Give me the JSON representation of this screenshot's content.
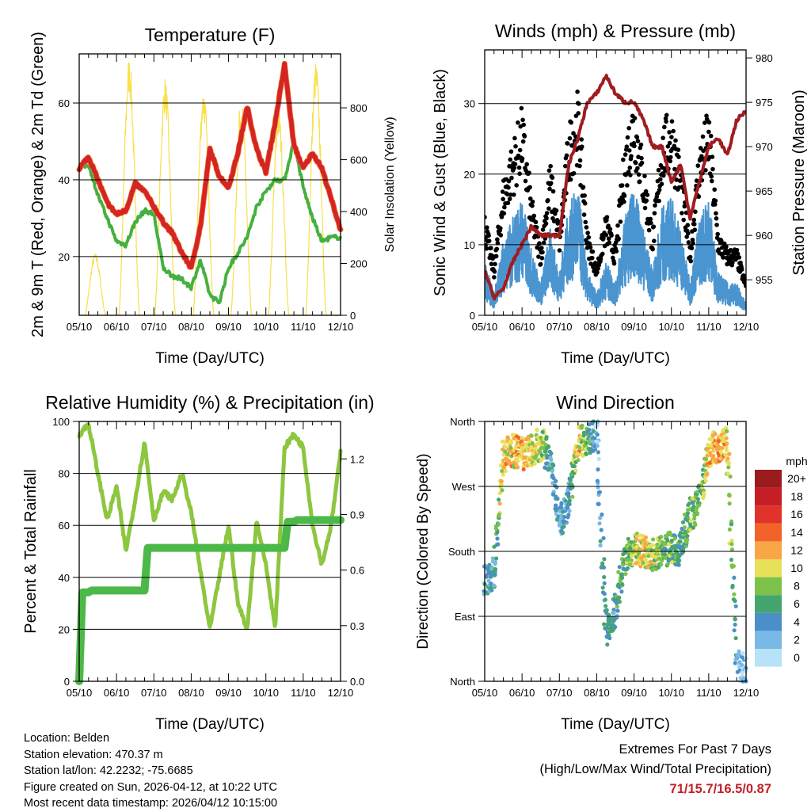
{
  "footer": {
    "location": "Location: Belden",
    "elevation": "Station elevation: 470.37 m",
    "latlon": "Station lat/lon: 42.2232; -75.6685",
    "created": "Figure created on Sun, 2026-04-12, at 10:22 UTC",
    "recent": "Most recent data timestamp: 2026/04/12 10:15:00",
    "extremes_title": "Extremes For Past 7 Days",
    "extremes_sub": "(High/Low/Max Wind/Total Precipitation)",
    "extremes_value": "71/15.7/16.5/0.87"
  },
  "chart_data": [
    {
      "id": "temperature",
      "type": "line",
      "title": "Temperature (F)",
      "xlabel": "Time (Day/UTC)",
      "ylabel": "2m & 9m T (Red, Orange) & 2m Td (Green)",
      "ylabel_right": "Solar Insolation (Yellow)",
      "x_ticks": [
        "05/10",
        "06/10",
        "07/10",
        "08/10",
        "09/10",
        "10/10",
        "11/10",
        "12/10"
      ],
      "xlim_days": [
        0,
        7
      ],
      "ylim": [
        4.7,
        72.8
      ],
      "y_ticks": [
        20,
        40,
        60
      ],
      "ylim_right": [
        0,
        1008
      ],
      "y_ticks_right": [
        0,
        200,
        400,
        600,
        800
      ],
      "step_hours": 6,
      "series": [
        {
          "name": "2m T",
          "color": "#d42426",
          "values": [
            43,
            46,
            40,
            34,
            31,
            32,
            39,
            37,
            33,
            29,
            26,
            21,
            17,
            28,
            48,
            41,
            38,
            47,
            59,
            48,
            42,
            55,
            70,
            49,
            43,
            47,
            43,
            35,
            27
          ]
        },
        {
          "name": "2m Td",
          "color": "#45b03f",
          "values": [
            43,
            44,
            36,
            30,
            24,
            23,
            29,
            32,
            31,
            17,
            15,
            14,
            12,
            19,
            10,
            8,
            17,
            21,
            25,
            33,
            37,
            40,
            40,
            50,
            38,
            30,
            24,
            25,
            25
          ]
        }
      ],
      "solar_peaks": [
        {
          "day": 0.43,
          "value": 240
        },
        {
          "day": 1.34,
          "value": 1000
        },
        {
          "day": 2.3,
          "value": 920
        },
        {
          "day": 3.33,
          "value": 880
        },
        {
          "day": 4.34,
          "value": 840
        },
        {
          "day": 5.34,
          "value": 800
        },
        {
          "day": 6.34,
          "value": 980
        }
      ],
      "solar_color": "#f9df4a"
    },
    {
      "id": "winds",
      "type": "scatter",
      "title": "Winds (mph) & Pressure (mb)",
      "xlabel": "Time (Day/UTC)",
      "ylabel": "Sonic Wind & Gust (Blue, Black)",
      "ylabel_right": "Station Pressure (Maroon)",
      "x_ticks": [
        "05/10",
        "06/10",
        "07/10",
        "08/10",
        "09/10",
        "10/10",
        "11/10",
        "12/10"
      ],
      "xlim_days": [
        0,
        7
      ],
      "ylim": [
        0,
        37.6
      ],
      "y_ticks": [
        0,
        10,
        20,
        30
      ],
      "ylim_right": [
        951,
        980.9
      ],
      "y_ticks_right": [
        955,
        960,
        965,
        970,
        975,
        980
      ],
      "step_hours": 6,
      "wind": {
        "color": "#4a95d0",
        "values": [
          5,
          2,
          7,
          9,
          11,
          6,
          3,
          8,
          4,
          10,
          12,
          4,
          2,
          5,
          3,
          9,
          12,
          8,
          4,
          10,
          11,
          8,
          3,
          9,
          11,
          4,
          3,
          3,
          1
        ]
      },
      "gust_color": "#000000",
      "pressure": {
        "color": "#a01c20",
        "values": [
          956,
          953,
          954,
          957,
          959,
          961,
          960,
          960,
          960,
          968,
          971,
          975,
          976,
          978,
          976,
          975,
          975,
          973,
          970,
          970,
          966,
          968,
          962,
          966,
          970,
          971,
          969,
          973,
          974
        ]
      }
    },
    {
      "id": "humidity",
      "type": "line",
      "title": "Relative Humidity (%) & Precipitation (in)",
      "xlabel": "Time (Day/UTC)",
      "ylabel": "Percent & Total Rainfall",
      "x_ticks": [
        "05/10",
        "06/10",
        "07/10",
        "08/10",
        "09/10",
        "10/10",
        "11/10",
        "12/10"
      ],
      "xlim_days": [
        0,
        7
      ],
      "ylim": [
        0,
        100
      ],
      "y_ticks": [
        0,
        20,
        40,
        60,
        80,
        100
      ],
      "ylim_right": [
        0,
        1.402
      ],
      "y_ticks_right": [
        "0.0",
        "0.3",
        "0.6",
        "0.9",
        "1.2"
      ],
      "step_hours": 6,
      "rh": {
        "color": "#8dc63f",
        "values": [
          95,
          99,
          80,
          62,
          75,
          50,
          70,
          92,
          62,
          73,
          70,
          80,
          65,
          42,
          20,
          40,
          60,
          30,
          20,
          62,
          45,
          20,
          90,
          95,
          90,
          60,
          45,
          60,
          88
        ]
      },
      "precip": {
        "color": "#4cb848",
        "values": [
          0,
          0.48,
          0.49,
          0.49,
          0.49,
          0.49,
          0.49,
          0.49,
          0.72,
          0.72,
          0.72,
          0.72,
          0.72,
          0.72,
          0.72,
          0.72,
          0.72,
          0.72,
          0.72,
          0.72,
          0.72,
          0.72,
          0.72,
          0.86,
          0.87,
          0.87,
          0.87,
          0.87,
          0.87
        ]
      }
    },
    {
      "id": "direction",
      "type": "scatter",
      "title": "Wind Direction",
      "xlabel": "Time (Day/UTC)",
      "ylabel": "Direction (Colored By Speed)",
      "x_ticks": [
        "05/10",
        "06/10",
        "07/10",
        "08/10",
        "09/10",
        "10/10",
        "11/10",
        "12/10"
      ],
      "xlim_days": [
        0,
        7
      ],
      "ylim": [
        0,
        360
      ],
      "y_ticks": [
        {
          "value": 0,
          "label": "North"
        },
        {
          "value": 90,
          "label": "East"
        },
        {
          "value": 180,
          "label": "South"
        },
        {
          "value": 270,
          "label": "West"
        },
        {
          "value": 360,
          "label": "North"
        }
      ],
      "step_hours": 6,
      "direction_deg": [
        140,
        150,
        310,
        320,
        315,
        320,
        330,
        310,
        220,
        250,
        330,
        335,
        345,
        70,
        100,
        170,
        185,
        180,
        175,
        180,
        185,
        180,
        230,
        250,
        320,
        325,
        330,
        20,
        15
      ],
      "speed_mph": [
        4,
        5,
        12,
        12,
        13,
        11,
        10,
        6,
        4,
        4,
        12,
        8,
        3,
        6,
        6,
        7,
        10,
        12,
        10,
        8,
        8,
        6,
        8,
        8,
        12,
        13,
        12,
        4,
        3
      ],
      "legend": {
        "title": "mph",
        "labels": [
          "20+",
          "18",
          "16",
          "14",
          "12",
          "10",
          "8",
          "6",
          "4",
          "2",
          "0"
        ],
        "colors": [
          "#9b1b1e",
          "#c41e26",
          "#e1332a",
          "#f26329",
          "#f9a646",
          "#e8e05a",
          "#7cc24a",
          "#45a56f",
          "#4a8fc8",
          "#7ab8e6",
          "#b8e2f8"
        ]
      }
    }
  ]
}
